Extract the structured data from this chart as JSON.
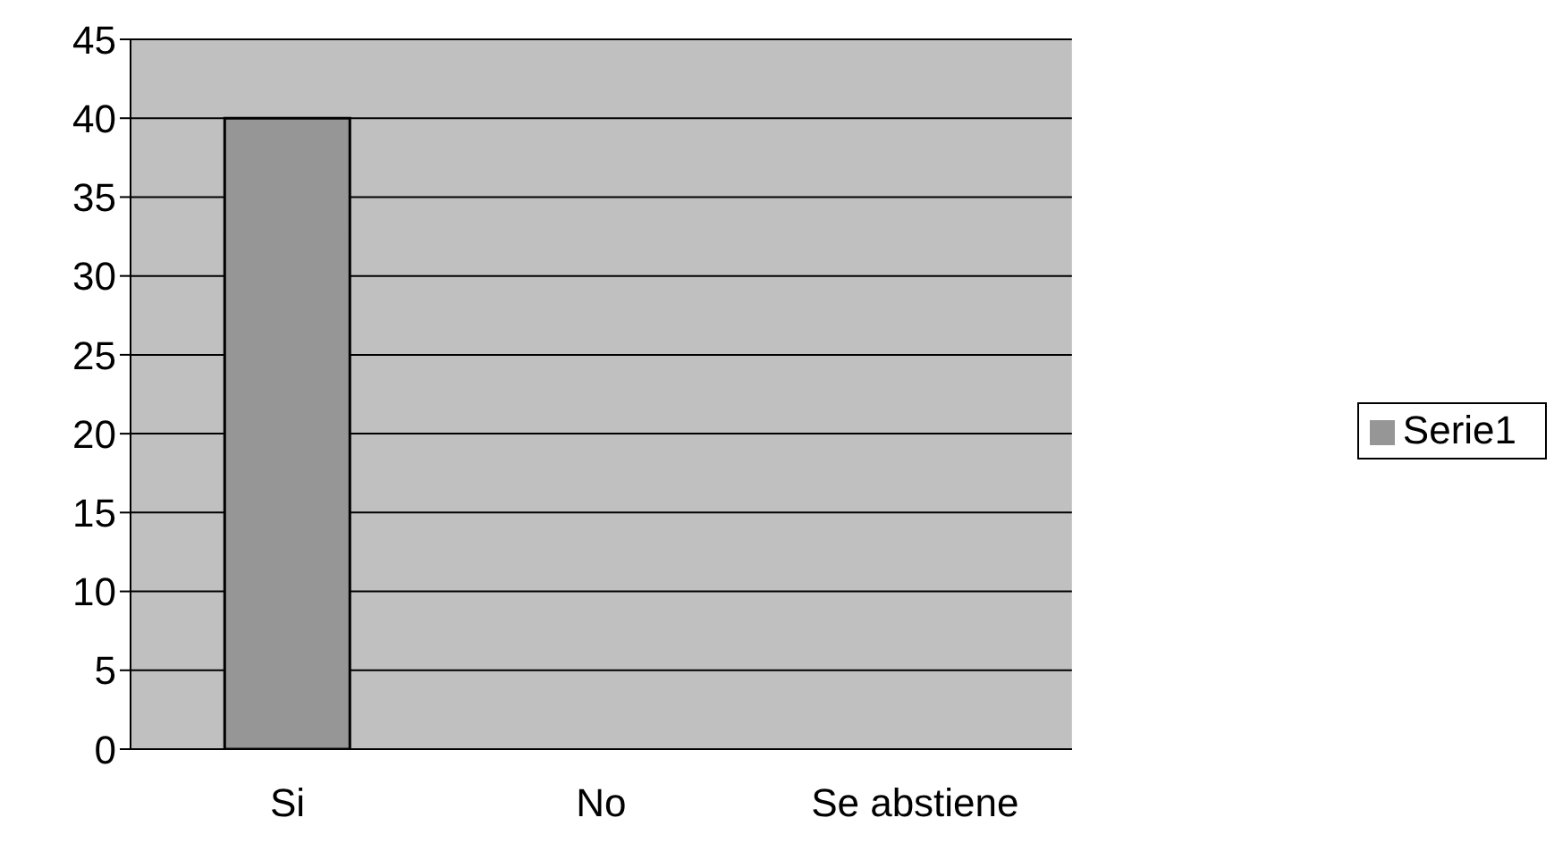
{
  "chart_data": {
    "type": "bar",
    "categories": [
      "Si",
      "No",
      "Se abstiene"
    ],
    "series": [
      {
        "name": "Serie1",
        "color": "#969696",
        "values": [
          40,
          0,
          0
        ]
      }
    ],
    "ylim": [
      0,
      45
    ],
    "yticks": [
      0,
      5,
      10,
      15,
      20,
      25,
      30,
      35,
      40,
      45
    ],
    "grid": "y",
    "legend": "right"
  }
}
